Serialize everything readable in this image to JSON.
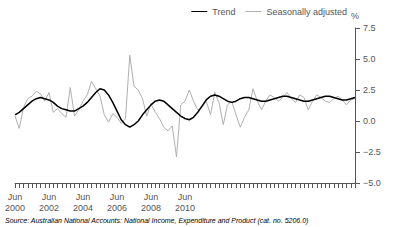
{
  "chart_data": {
    "type": "line",
    "ylabel": "%",
    "annotations": [
      "Source: Australian National Accounts: National Income, Expenditure and Product (cat. no. 5206.0)"
    ],
    "categories": [
      "Jun\n2000",
      null,
      null,
      null,
      null,
      null,
      null,
      null,
      "Jun\n2002",
      null,
      null,
      null,
      null,
      null,
      null,
      null,
      "Jun\n2004",
      null,
      null,
      null,
      null,
      null,
      null,
      null,
      "Jun\n2006",
      null,
      null,
      null,
      null,
      null,
      null,
      null,
      "Jun\n2008",
      null,
      null,
      null,
      null,
      null,
      null,
      null,
      "Jun\n2010",
      null,
      null,
      null,
      null,
      null,
      null,
      null,
      null,
      null,
      null,
      null,
      null,
      null,
      null,
      null,
      null,
      null,
      null,
      null,
      null,
      null,
      null,
      null,
      null,
      null,
      null,
      null,
      null,
      null,
      null,
      null,
      null,
      null,
      null,
      null,
      null,
      null,
      null,
      null,
      null
    ],
    "series": [
      {
        "name": "Trend",
        "color": "#000000",
        "values": [
          0.5,
          0.7,
          1.0,
          1.3,
          1.6,
          1.8,
          1.9,
          1.8,
          1.7,
          1.5,
          1.2,
          1.0,
          0.9,
          0.8,
          0.8,
          1.0,
          1.2,
          1.5,
          1.9,
          2.3,
          2.6,
          2.5,
          2.1,
          1.5,
          0.8,
          0.1,
          -0.3,
          -0.5,
          -0.3,
          0.0,
          0.5,
          0.9,
          1.3,
          1.6,
          1.7,
          1.6,
          1.3,
          1.0,
          0.7,
          0.4,
          0.2,
          0.1,
          0.3,
          0.7,
          1.2,
          1.7,
          2.0,
          2.1,
          2.0,
          1.8,
          1.6,
          1.5,
          1.6,
          1.8,
          1.9,
          1.9,
          1.8,
          1.7,
          1.6,
          1.6,
          1.7,
          1.8,
          1.9,
          2.0,
          2.0,
          1.9,
          1.8,
          1.7,
          1.6,
          1.6,
          1.7,
          1.8,
          1.9,
          2.0,
          2.0,
          1.9,
          1.8,
          1.7,
          1.7,
          1.8,
          1.9
        ]
      },
      {
        "name": "Seasonally adjusted",
        "color": "#b0b0b0",
        "values": [
          0.4,
          -0.6,
          1.1,
          1.8,
          2.0,
          2.4,
          2.2,
          1.6,
          2.3,
          0.7,
          1.0,
          0.6,
          0.3,
          2.7,
          0.4,
          0.9,
          1.6,
          2.1,
          3.2,
          2.6,
          2.0,
          0.5,
          -0.1,
          0.6,
          0.3,
          -0.2,
          0.2,
          5.3,
          2.8,
          2.5,
          1.8,
          0.4,
          1.4,
          0.7,
          0.2,
          -0.5,
          -0.8,
          -0.4,
          -2.9,
          1.3,
          1.6,
          2.5,
          1.6,
          0.9,
          1.1,
          1.6,
          0.5,
          2.3,
          1.5,
          -0.3,
          1.3,
          1.6,
          0.5,
          -0.5,
          0.3,
          0.9,
          2.6,
          1.6,
          0.9,
          1.6,
          2.1,
          1.9,
          1.6,
          1.9,
          2.3,
          1.8,
          1.5,
          2.1,
          1.9,
          0.9,
          1.6,
          2.1,
          1.9,
          1.6,
          1.5,
          1.8,
          2.0,
          1.7,
          1.3,
          1.7,
          1.8
        ]
      }
    ],
    "ylim": [
      -5.0,
      7.5
    ],
    "yticks": [
      {
        "value": -5.0,
        "label": "−5.0"
      },
      {
        "value": -2.5,
        "label": "−2.5"
      },
      {
        "value": 0.0,
        "label": "0.0"
      },
      2.5,
      {
        "value": 5.0,
        "label": "5.0"
      },
      7.5
    ],
    "grid": false,
    "legend": "upper right"
  }
}
